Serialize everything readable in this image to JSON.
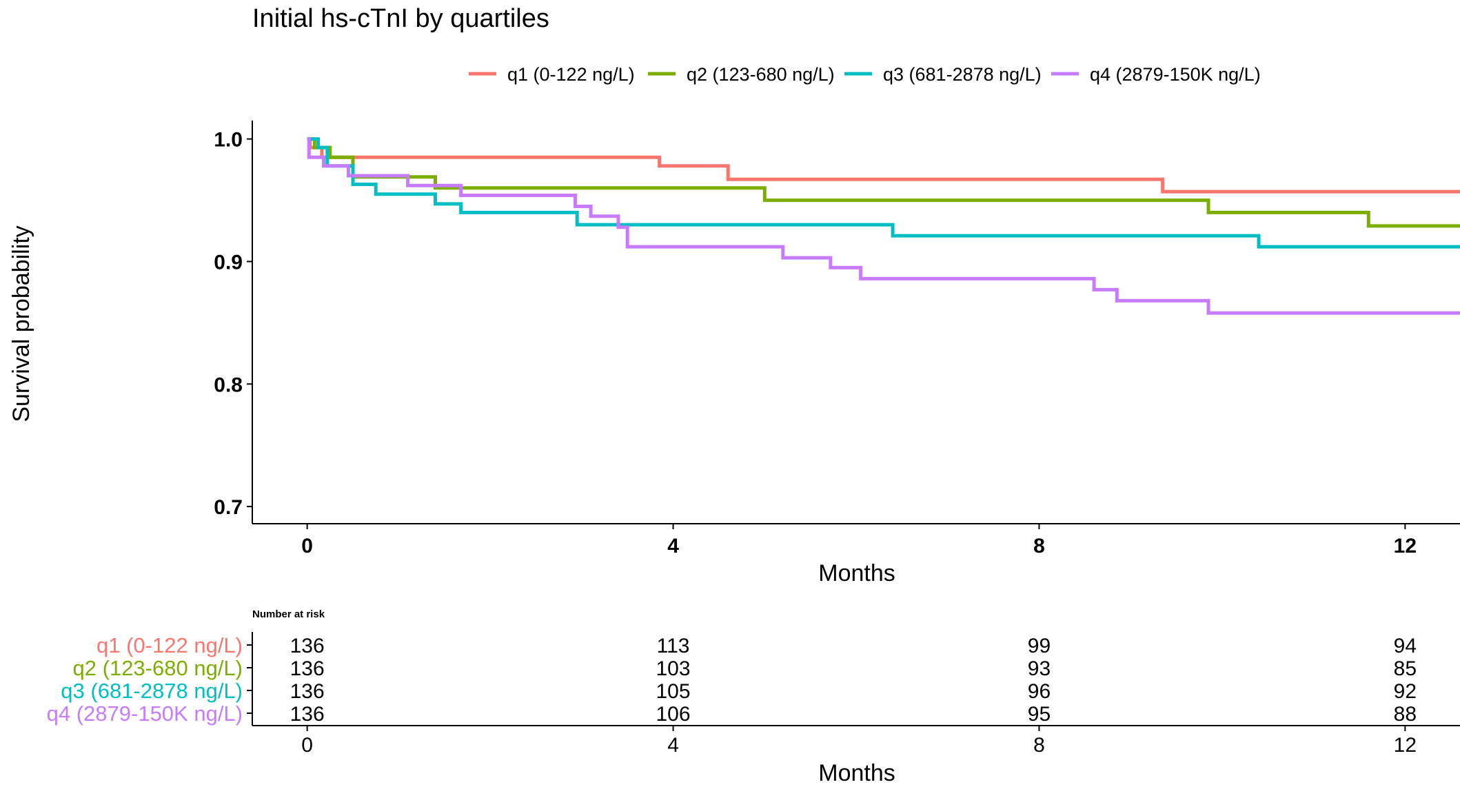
{
  "chart_data": {
    "type": "line",
    "title": "Initial hs-cTnI by quartiles",
    "xlabel": "Months",
    "ylabel": "Survival probability",
    "xlim": [
      -0.6,
      12.6
    ],
    "ylim": [
      0.686,
      1.015
    ],
    "x_ticks": [
      0,
      4,
      8,
      12
    ],
    "y_ticks": [
      0.7,
      0.8,
      0.9,
      1.0
    ],
    "y_tick_labels": [
      "0.7",
      "0.8",
      "0.9",
      "1.0"
    ],
    "grid": false,
    "legend_position": "top",
    "step": true,
    "series": [
      {
        "name": "q1 (0-122 ng/L)",
        "color": "#F8766D",
        "x": [
          0,
          0.03,
          0.16,
          3.85,
          4.6,
          9.35,
          12.6
        ],
        "y": [
          1.0,
          0.993,
          0.985,
          0.978,
          0.967,
          0.957,
          0.957
        ]
      },
      {
        "name": "q2 (123-680 ng/L)",
        "color": "#7CAE00",
        "x": [
          0,
          0.08,
          0.25,
          0.5,
          1.4,
          5.0,
          9.85,
          11.6,
          12.6
        ],
        "y": [
          1.0,
          0.993,
          0.985,
          0.969,
          0.96,
          0.95,
          0.94,
          0.929,
          0.929
        ]
      },
      {
        "name": "q3 (681-2878 ng/L)",
        "color": "#00BFC4",
        "x": [
          0,
          0.12,
          0.22,
          0.5,
          0.75,
          1.4,
          1.68,
          2.95,
          6.4,
          10.4,
          12.6
        ],
        "y": [
          1.0,
          0.993,
          0.978,
          0.963,
          0.955,
          0.947,
          0.94,
          0.93,
          0.921,
          0.912,
          0.912
        ]
      },
      {
        "name": "q4 (2879-150K ng/L)",
        "color": "#C77CFF",
        "x": [
          0,
          0.02,
          0.18,
          0.45,
          1.1,
          1.68,
          2.93,
          3.1,
          3.4,
          3.5,
          5.2,
          5.72,
          6.05,
          8.6,
          8.85,
          9.85,
          12.6
        ],
        "y": [
          1.0,
          0.985,
          0.978,
          0.97,
          0.962,
          0.954,
          0.945,
          0.937,
          0.928,
          0.912,
          0.903,
          0.895,
          0.886,
          0.877,
          0.868,
          0.858,
          0.858
        ]
      }
    ],
    "risk_table": {
      "title": "Number at risk",
      "times": [
        0,
        4,
        8,
        12
      ],
      "rows": [
        {
          "label": "q1 (0-122 ng/L)",
          "color": "#F8766D",
          "values": [
            "136",
            "113",
            "99",
            "94"
          ]
        },
        {
          "label": "q2 (123-680 ng/L)",
          "color": "#7CAE00",
          "values": [
            "136",
            "103",
            "93",
            "85"
          ]
        },
        {
          "label": "q3 (681-2878 ng/L)",
          "color": "#00BFC4",
          "values": [
            "136",
            "105",
            "96",
            "92"
          ]
        },
        {
          "label": "q4 (2879-150K ng/L)",
          "color": "#C77CFF",
          "values": [
            "136",
            "106",
            "95",
            "88"
          ]
        }
      ],
      "x_ticks": [
        0,
        4,
        8,
        12
      ],
      "xlabel": "Months"
    }
  }
}
